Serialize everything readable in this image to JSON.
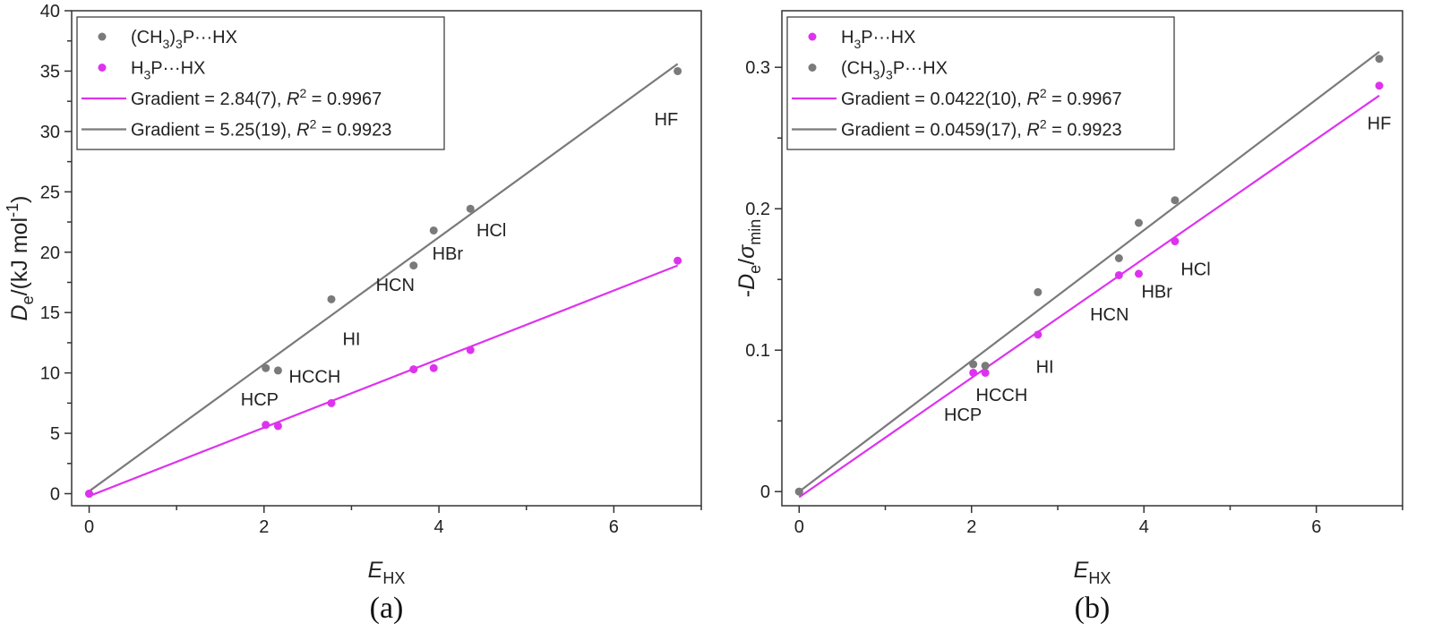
{
  "chart_data": [
    {
      "type": "scatter",
      "panel": "(a)",
      "xlabel": {
        "main": "E",
        "sub": "HX"
      },
      "ylabel": {
        "main": "D",
        "sub": "e",
        "rest": "/(kJ mol",
        "sup": "-1",
        "close": ")"
      },
      "xlim": [
        -0.2,
        7.0
      ],
      "ylim": [
        -1.0,
        40.0
      ],
      "xticks": [
        0,
        2,
        4,
        6
      ],
      "yticks": [
        0,
        5,
        10,
        15,
        20,
        25,
        30,
        35,
        40
      ],
      "colors": {
        "gray": "#7a7a7a",
        "magenta": "#dd33ee"
      },
      "series": [
        {
          "name": "(CH3)3P···HX",
          "color": "#7a7a7a",
          "x": [
            0.0,
            2.02,
            2.16,
            2.77,
            3.71,
            3.94,
            4.36,
            6.73
          ],
          "y": [
            0.0,
            10.4,
            10.2,
            16.1,
            18.9,
            21.8,
            23.6,
            35.0
          ]
        },
        {
          "name": "H3P···HX",
          "color": "#dd33ee",
          "x": [
            0.0,
            2.02,
            2.16,
            2.77,
            3.71,
            3.94,
            4.36,
            6.73
          ],
          "y": [
            0.0,
            5.7,
            5.6,
            7.5,
            10.3,
            10.4,
            11.9,
            19.3
          ]
        }
      ],
      "fits": [
        {
          "color": "#dd33ee",
          "x": [
            0.0,
            6.73
          ],
          "y": [
            -0.2,
            18.9
          ]
        },
        {
          "color": "#7a7a7a",
          "x": [
            0.0,
            6.73
          ],
          "y": [
            0.2,
            35.6
          ]
        }
      ],
      "legend": [
        {
          "kind": "dot",
          "color": "#7a7a7a",
          "text": "(CH3)3P···HX"
        },
        {
          "kind": "dot",
          "color": "#dd33ee",
          "text": "H3P···HX"
        },
        {
          "kind": "line",
          "color": "#dd33ee",
          "text": "Gradient = 2.84(7),  R2 = 0.9967"
        },
        {
          "kind": "line",
          "color": "#7a7a7a",
          "text": "Gradient = 5.25(19), R2 = 0.9923"
        }
      ],
      "annotations": [
        {
          "text": "HF",
          "x": 6.6,
          "y": 30.5
        },
        {
          "text": "HCl",
          "x": 4.6,
          "y": 21.3
        },
        {
          "text": "HBr",
          "x": 4.1,
          "y": 19.4
        },
        {
          "text": "HCN",
          "x": 3.5,
          "y": 16.8
        },
        {
          "text": "HI",
          "x": 3.0,
          "y": 12.3
        },
        {
          "text": "HCCH",
          "x": 2.58,
          "y": 9.2
        },
        {
          "text": "HCP",
          "x": 1.95,
          "y": 7.3
        }
      ],
      "caption": "(a)"
    },
    {
      "type": "scatter",
      "panel": "(b)",
      "xlabel": {
        "main": "E",
        "sub": "HX"
      },
      "ylabel": {
        "pre": "-",
        "main": "D",
        "sub": "e",
        "slash": "/",
        "sigma": "σ",
        "sigsub": "min"
      },
      "xlim": [
        -0.2,
        7.0
      ],
      "ylim": [
        -0.01,
        0.34
      ],
      "xticks": [
        0,
        2,
        4,
        6
      ],
      "yticks": [
        0,
        0.1,
        0.2,
        0.3
      ],
      "ytick_labels": [
        "0",
        "0.1",
        "0.2",
        "0.3"
      ],
      "colors": {
        "gray": "#7a7a7a",
        "magenta": "#dd33ee"
      },
      "series": [
        {
          "name": "H3P···HX",
          "color": "#dd33ee",
          "x": [
            0.0,
            2.02,
            2.16,
            2.77,
            3.71,
            3.94,
            4.36,
            6.73
          ],
          "y": [
            0.0,
            0.084,
            0.084,
            0.111,
            0.153,
            0.154,
            0.177,
            0.287
          ]
        },
        {
          "name": "(CH3)3P···HX",
          "color": "#7a7a7a",
          "x": [
            0.0,
            2.02,
            2.16,
            2.77,
            3.71,
            3.94,
            4.36,
            6.73
          ],
          "y": [
            0.0,
            0.09,
            0.089,
            0.141,
            0.165,
            0.19,
            0.206,
            0.306
          ]
        }
      ],
      "fits": [
        {
          "color": "#dd33ee",
          "x": [
            0.0,
            6.73
          ],
          "y": [
            -0.004,
            0.28
          ]
        },
        {
          "color": "#7a7a7a",
          "x": [
            0.0,
            6.73
          ],
          "y": [
            0.0,
            0.311
          ]
        }
      ],
      "legend": [
        {
          "kind": "dot",
          "color": "#dd33ee",
          "text": "H3P···HX"
        },
        {
          "kind": "dot",
          "color": "#7a7a7a",
          "text": "(CH3)3P···HX"
        },
        {
          "kind": "line",
          "color": "#dd33ee",
          "text": "Gradient = 0.0422(10), R2 = 0.9967"
        },
        {
          "kind": "line",
          "color": "#7a7a7a",
          "text": "Gradient = 0.0459(17), R2 = 0.9923"
        }
      ],
      "annotations": [
        {
          "text": "HF",
          "x": 6.73,
          "y": 0.256
        },
        {
          "text": "HCl",
          "x": 4.6,
          "y": 0.153
        },
        {
          "text": "HBr",
          "x": 4.15,
          "y": 0.137
        },
        {
          "text": "HCN",
          "x": 3.6,
          "y": 0.121
        },
        {
          "text": "HI",
          "x": 2.85,
          "y": 0.084
        },
        {
          "text": "HCCH",
          "x": 2.35,
          "y": 0.064
        },
        {
          "text": "HCP",
          "x": 1.9,
          "y": 0.05
        }
      ],
      "caption": "(b)"
    }
  ]
}
